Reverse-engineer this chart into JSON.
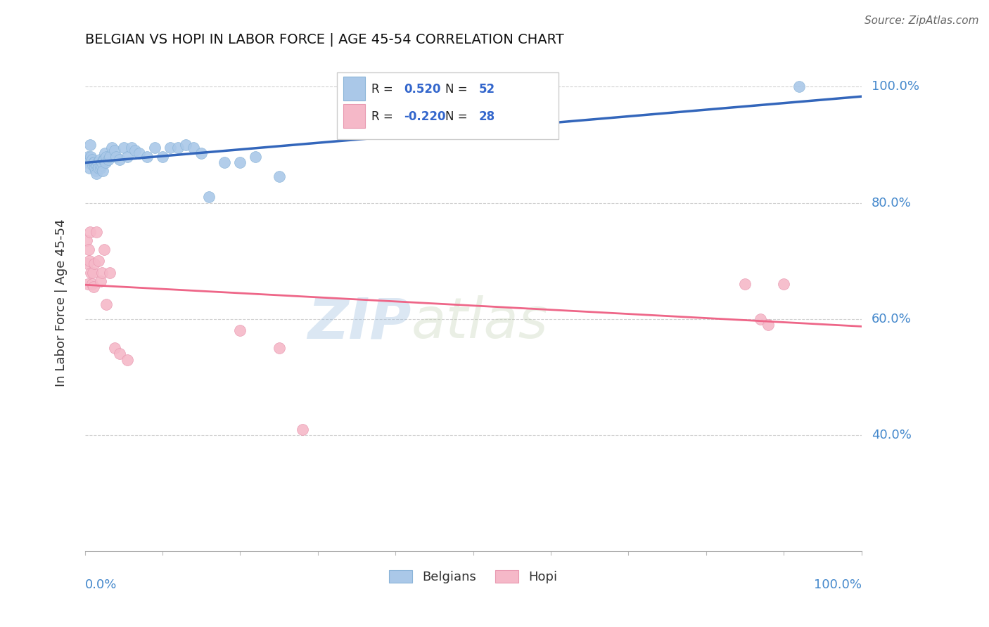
{
  "title": "BELGIAN VS HOPI IN LABOR FORCE | AGE 45-54 CORRELATION CHART",
  "source": "Source: ZipAtlas.com",
  "ylabel": "In Labor Force | Age 45-54",
  "legend_belgians": "Belgians",
  "legend_hopi": "Hopi",
  "belgian_x": [
    0.002,
    0.003,
    0.004,
    0.005,
    0.006,
    0.007,
    0.008,
    0.009,
    0.01,
    0.011,
    0.012,
    0.013,
    0.014,
    0.015,
    0.016,
    0.017,
    0.018,
    0.019,
    0.02,
    0.021,
    0.022,
    0.023,
    0.024,
    0.025,
    0.026,
    0.027,
    0.028,
    0.03,
    0.032,
    0.035,
    0.038,
    0.04,
    0.045,
    0.05,
    0.055,
    0.06,
    0.065,
    0.07,
    0.08,
    0.09,
    0.1,
    0.11,
    0.12,
    0.13,
    0.14,
    0.15,
    0.16,
    0.18,
    0.2,
    0.22,
    0.25,
    0.92
  ],
  "belgian_y": [
    0.87,
    0.875,
    0.88,
    0.87,
    0.86,
    0.9,
    0.88,
    0.875,
    0.865,
    0.87,
    0.87,
    0.86,
    0.855,
    0.85,
    0.865,
    0.87,
    0.86,
    0.875,
    0.86,
    0.865,
    0.87,
    0.855,
    0.875,
    0.875,
    0.885,
    0.87,
    0.88,
    0.875,
    0.88,
    0.895,
    0.89,
    0.88,
    0.875,
    0.895,
    0.88,
    0.895,
    0.89,
    0.885,
    0.88,
    0.895,
    0.88,
    0.895,
    0.895,
    0.9,
    0.895,
    0.885,
    0.81,
    0.87,
    0.87,
    0.88,
    0.845,
    1.0
  ],
  "hopi_x": [
    0.002,
    0.003,
    0.004,
    0.005,
    0.006,
    0.007,
    0.008,
    0.009,
    0.01,
    0.011,
    0.012,
    0.015,
    0.018,
    0.02,
    0.022,
    0.025,
    0.028,
    0.032,
    0.038,
    0.045,
    0.055,
    0.2,
    0.25,
    0.28,
    0.85,
    0.87,
    0.88,
    0.9
  ],
  "hopi_y": [
    0.735,
    0.695,
    0.66,
    0.72,
    0.7,
    0.75,
    0.68,
    0.66,
    0.68,
    0.655,
    0.695,
    0.75,
    0.7,
    0.665,
    0.68,
    0.72,
    0.625,
    0.68,
    0.55,
    0.54,
    0.53,
    0.58,
    0.55,
    0.41,
    0.66,
    0.6,
    0.59,
    0.66
  ],
  "watermark_zip": "ZIP",
  "watermark_atlas": "atlas",
  "xlim": [
    0.0,
    1.0
  ],
  "ylim": [
    0.2,
    1.055
  ],
  "yticks": [
    1.0,
    0.8,
    0.6,
    0.4
  ],
  "ytick_labels": [
    "100.0%",
    "80.0%",
    "60.0%",
    "40.0%"
  ],
  "bg_color": "#ffffff",
  "blue_scatter_color": "#aac8e8",
  "pink_scatter_color": "#f5b8c8",
  "blue_line_color": "#3366bb",
  "pink_line_color": "#ee6688",
  "grid_color": "#cccccc",
  "label_color": "#4488cc",
  "r_value_color": "#3366cc",
  "n_value_color": "#3366cc"
}
